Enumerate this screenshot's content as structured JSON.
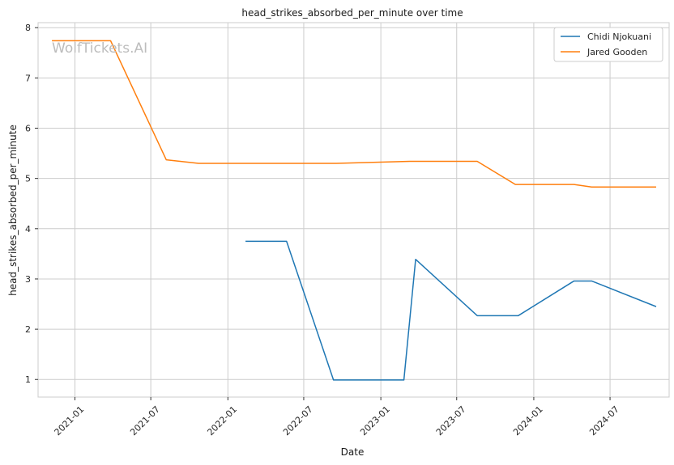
{
  "chart_data": {
    "type": "line",
    "title": "head_strikes_absorbed_per_minute over time",
    "xlabel": "Date",
    "ylabel": "head_strikes_absorbed_per_minute",
    "x_ticks": [
      "2021-01",
      "2021-07",
      "2022-01",
      "2022-07",
      "2023-01",
      "2023-07",
      "2024-01",
      "2024-07"
    ],
    "y_ticks": [
      1,
      2,
      3,
      4,
      5,
      6,
      7,
      8
    ],
    "xlim": [
      "2020-10-05",
      "2024-11-19"
    ],
    "ylim": [
      0.65,
      8.1
    ],
    "grid": true,
    "legend_position": "top-right",
    "watermark": "WolfTickets.AI",
    "series": [
      {
        "name": "Chidi Njokuani",
        "color": "#1f77b4",
        "points": [
          {
            "x": "2022-02-12",
            "y": 3.75
          },
          {
            "x": "2022-05-21",
            "y": 3.75
          },
          {
            "x": "2022-09-10",
            "y": 0.99
          },
          {
            "x": "2023-02-25",
            "y": 0.99
          },
          {
            "x": "2023-03-25",
            "y": 3.39
          },
          {
            "x": "2023-08-19",
            "y": 2.27
          },
          {
            "x": "2023-11-25",
            "y": 2.27
          },
          {
            "x": "2024-04-06",
            "y": 2.96
          },
          {
            "x": "2024-05-18",
            "y": 2.96
          },
          {
            "x": "2024-10-19",
            "y": 2.45
          }
        ]
      },
      {
        "name": "Jared Gooden",
        "color": "#ff7f0e",
        "points": [
          {
            "x": "2020-11-07",
            "y": 7.74
          },
          {
            "x": "2021-03-27",
            "y": 7.74
          },
          {
            "x": "2021-08-07",
            "y": 5.37
          },
          {
            "x": "2021-10-23",
            "y": 5.3
          },
          {
            "x": "2022-09-17",
            "y": 5.3
          },
          {
            "x": "2023-03-11",
            "y": 5.34
          },
          {
            "x": "2023-08-19",
            "y": 5.34
          },
          {
            "x": "2023-11-18",
            "y": 4.88
          },
          {
            "x": "2024-04-06",
            "y": 4.88
          },
          {
            "x": "2024-05-18",
            "y": 4.83
          },
          {
            "x": "2024-10-19",
            "y": 4.83
          }
        ]
      }
    ]
  }
}
